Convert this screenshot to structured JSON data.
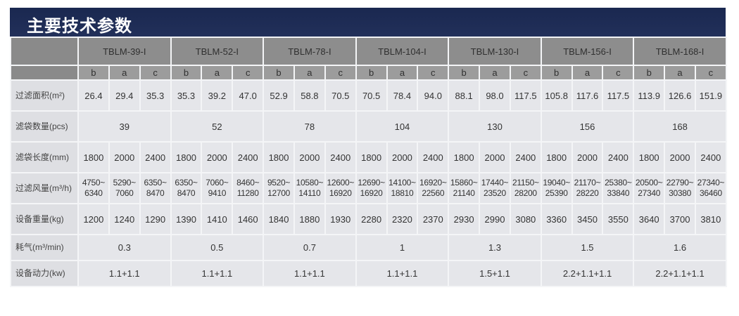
{
  "title": "主要技术参数",
  "models": [
    "TBLM-39-I",
    "TBLM-52-I",
    "TBLM-78-I",
    "TBLM-104-I",
    "TBLM-130-I",
    "TBLM-156-I",
    "TBLM-168-I"
  ],
  "variants": [
    "b",
    "a",
    "c"
  ],
  "rows": [
    {
      "label": "过滤面积(m²)",
      "type": "per",
      "values": [
        "26.4",
        "29.4",
        "35.3",
        "35.3",
        "39.2",
        "47.0",
        "52.9",
        "58.8",
        "70.5",
        "70.5",
        "78.4",
        "94.0",
        "88.1",
        "98.0",
        "117.5",
        "105.8",
        "117.6",
        "117.5",
        "113.9",
        "126.6",
        "151.9"
      ]
    },
    {
      "label": "滤袋数量(pcs)",
      "type": "group",
      "values": [
        "39",
        "52",
        "78",
        "104",
        "130",
        "156",
        "168"
      ]
    },
    {
      "label": "滤袋长度(mm)",
      "type": "per",
      "values": [
        "1800",
        "2000",
        "2400",
        "1800",
        "2000",
        "2400",
        "1800",
        "2000",
        "2400",
        "1800",
        "2000",
        "2400",
        "1800",
        "2000",
        "2400",
        "1800",
        "2000",
        "2400",
        "1800",
        "2000",
        "2400"
      ]
    },
    {
      "label": "过滤风量(m³/h)",
      "type": "flow",
      "values": [
        "4750~ 6340",
        "5290~ 7060",
        "6350~ 8470",
        "6350~ 8470",
        "7060~ 9410",
        "8460~ 11280",
        "9520~ 12700",
        "10580~ 14110",
        "12600~ 16920",
        "12690~ 16920",
        "14100~ 18810",
        "16920~ 22560",
        "15860~ 21140",
        "17440~ 23520",
        "21150~ 28200",
        "19040~ 25390",
        "21170~ 28220",
        "25380~ 33840",
        "20500~ 27340",
        "22790~ 30380",
        "27340~ 36460"
      ]
    },
    {
      "label": "设备重量(kg)",
      "type": "per",
      "values": [
        "1200",
        "1240",
        "1290",
        "1390",
        "1410",
        "1460",
        "1840",
        "1880",
        "1930",
        "2280",
        "2320",
        "2370",
        "2930",
        "2990",
        "3080",
        "3360",
        "3450",
        "3550",
        "3640",
        "3700",
        "3810"
      ]
    },
    {
      "label": "耗气(m³/min)",
      "type": "group",
      "values": [
        "0.3",
        "0.5",
        "0.7",
        "1",
        "1.3",
        "1.5",
        "1.6"
      ]
    },
    {
      "label": "设备动力(kw)",
      "type": "group",
      "values": [
        "1.1+1.1",
        "1.1+1.1",
        "1.1+1.1",
        "1.1+1.1",
        "1.5+1.1",
        "2.2+1.1+1.1",
        "2.2+1.1+1.1"
      ]
    }
  ],
  "colors": {
    "title_bar": "#1a2850",
    "header": "#8d8d8d",
    "cell": "#e5e6ea"
  }
}
